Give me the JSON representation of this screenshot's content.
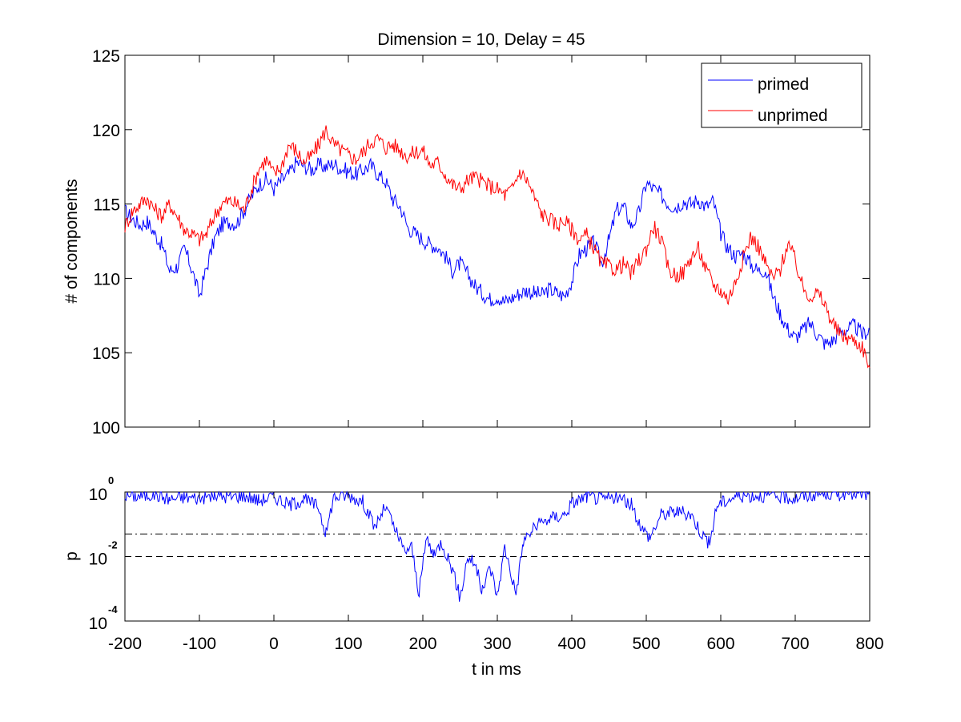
{
  "chart_data": [
    {
      "type": "line",
      "title": "Dimension  = 10, Delay = 45",
      "xlabel": "",
      "ylabel": "# of components",
      "xlim": [
        -200,
        800
      ],
      "ylim": [
        100,
        125
      ],
      "yticks": [
        "100",
        "105",
        "110",
        "115",
        "120",
        "125"
      ],
      "grid": false,
      "legend_position": "top-right",
      "series": [
        {
          "name": "primed",
          "color": "#0000ff",
          "points": [
            [
              -200,
              114.5
            ],
            [
              -190,
              114.0
            ],
            [
              -180,
              113.6
            ],
            [
              -170,
              113.8
            ],
            [
              -160,
              113.0
            ],
            [
              -150,
              112.2
            ],
            [
              -140,
              110.5
            ],
            [
              -130,
              110.8
            ],
            [
              -120,
              112.0
            ],
            [
              -110,
              110.6
            ],
            [
              -100,
              108.8
            ],
            [
              -90,
              110.8
            ],
            [
              -80,
              112.6
            ],
            [
              -70,
              113.6
            ],
            [
              -60,
              113.8
            ],
            [
              -50,
              113.7
            ],
            [
              -40,
              114.6
            ],
            [
              -30,
              115.5
            ],
            [
              -20,
              116.3
            ],
            [
              -10,
              116.7
            ],
            [
              0,
              116.0
            ],
            [
              10,
              116.6
            ],
            [
              20,
              117.0
            ],
            [
              30,
              117.8
            ],
            [
              40,
              117.6
            ],
            [
              50,
              117.3
            ],
            [
              60,
              117.6
            ],
            [
              70,
              117.5
            ],
            [
              80,
              117.7
            ],
            [
              90,
              117.4
            ],
            [
              100,
              117.2
            ],
            [
              110,
              117.0
            ],
            [
              120,
              117.3
            ],
            [
              130,
              117.6
            ],
            [
              140,
              117.0
            ],
            [
              150,
              116.5
            ],
            [
              160,
              115.3
            ],
            [
              170,
              114.8
            ],
            [
              180,
              113.4
            ],
            [
              190,
              113.0
            ],
            [
              200,
              112.6
            ],
            [
              210,
              112.3
            ],
            [
              220,
              112.1
            ],
            [
              230,
              111.5
            ],
            [
              240,
              110.5
            ],
            [
              250,
              111.0
            ],
            [
              260,
              110.3
            ],
            [
              270,
              109.5
            ],
            [
              280,
              109.0
            ],
            [
              290,
              108.6
            ],
            [
              300,
              108.8
            ],
            [
              310,
              108.4
            ],
            [
              320,
              108.7
            ],
            [
              330,
              109.0
            ],
            [
              340,
              109.2
            ],
            [
              350,
              109.0
            ],
            [
              360,
              108.9
            ],
            [
              370,
              109.3
            ],
            [
              380,
              109.0
            ],
            [
              390,
              108.8
            ],
            [
              400,
              109.8
            ],
            [
              410,
              111.6
            ],
            [
              420,
              112.0
            ],
            [
              430,
              112.4
            ],
            [
              440,
              111.0
            ],
            [
              450,
              112.6
            ],
            [
              460,
              114.6
            ],
            [
              470,
              114.8
            ],
            [
              480,
              113.5
            ],
            [
              490,
              114.4
            ],
            [
              500,
              116.4
            ],
            [
              510,
              116.0
            ],
            [
              520,
              115.6
            ],
            [
              530,
              115.0
            ],
            [
              540,
              114.8
            ],
            [
              550,
              115.2
            ],
            [
              560,
              115.0
            ],
            [
              570,
              115.3
            ],
            [
              580,
              114.8
            ],
            [
              590,
              115.2
            ],
            [
              600,
              113.0
            ],
            [
              610,
              112.0
            ],
            [
              620,
              111.5
            ],
            [
              630,
              111.7
            ],
            [
              640,
              111.0
            ],
            [
              650,
              110.5
            ],
            [
              660,
              110.6
            ],
            [
              670,
              108.8
            ],
            [
              680,
              107.6
            ],
            [
              690,
              106.6
            ],
            [
              700,
              106.0
            ],
            [
              710,
              106.5
            ],
            [
              720,
              107.0
            ],
            [
              730,
              106.2
            ],
            [
              740,
              105.6
            ],
            [
              750,
              105.8
            ],
            [
              760,
              106.4
            ],
            [
              770,
              106.6
            ],
            [
              780,
              106.8
            ],
            [
              790,
              106.2
            ],
            [
              800,
              106.6
            ]
          ]
        },
        {
          "name": "unprimed",
          "color": "#ff0000",
          "points": [
            [
              -200,
              113.5
            ],
            [
              -190,
              114.5
            ],
            [
              -180,
              115.0
            ],
            [
              -170,
              115.4
            ],
            [
              -160,
              114.6
            ],
            [
              -150,
              114.2
            ],
            [
              -140,
              115.0
            ],
            [
              -130,
              114.2
            ],
            [
              -120,
              113.3
            ],
            [
              -110,
              113.0
            ],
            [
              -100,
              112.6
            ],
            [
              -90,
              113.0
            ],
            [
              -80,
              114.2
            ],
            [
              -70,
              115.0
            ],
            [
              -60,
              115.2
            ],
            [
              -50,
              115.0
            ],
            [
              -40,
              114.6
            ],
            [
              -30,
              116.0
            ],
            [
              -20,
              117.4
            ],
            [
              -10,
              118.0
            ],
            [
              0,
              117.0
            ],
            [
              10,
              117.5
            ],
            [
              20,
              119.0
            ],
            [
              30,
              118.6
            ],
            [
              40,
              117.8
            ],
            [
              50,
              118.2
            ],
            [
              60,
              119.0
            ],
            [
              70,
              120.0
            ],
            [
              80,
              119.0
            ],
            [
              90,
              118.6
            ],
            [
              100,
              118.3
            ],
            [
              110,
              118.0
            ],
            [
              120,
              118.5
            ],
            [
              130,
              119.2
            ],
            [
              140,
              119.4
            ],
            [
              150,
              118.8
            ],
            [
              160,
              119.0
            ],
            [
              170,
              118.6
            ],
            [
              180,
              118.2
            ],
            [
              190,
              118.5
            ],
            [
              200,
              118.6
            ],
            [
              210,
              117.6
            ],
            [
              220,
              117.8
            ],
            [
              230,
              117.0
            ],
            [
              240,
              116.3
            ],
            [
              250,
              116.0
            ],
            [
              260,
              116.6
            ],
            [
              270,
              116.8
            ],
            [
              280,
              116.5
            ],
            [
              290,
              116.2
            ],
            [
              300,
              116.0
            ],
            [
              310,
              115.6
            ],
            [
              320,
              116.0
            ],
            [
              330,
              117.2
            ],
            [
              340,
              116.6
            ],
            [
              350,
              115.4
            ],
            [
              360,
              114.3
            ],
            [
              370,
              114.0
            ],
            [
              380,
              113.6
            ],
            [
              390,
              113.9
            ],
            [
              400,
              113.3
            ],
            [
              410,
              112.6
            ],
            [
              420,
              112.9
            ],
            [
              430,
              112.0
            ],
            [
              440,
              111.0
            ],
            [
              450,
              110.8
            ],
            [
              460,
              110.6
            ],
            [
              470,
              111.0
            ],
            [
              480,
              110.3
            ],
            [
              490,
              111.2
            ],
            [
              500,
              112.0
            ],
            [
              510,
              113.5
            ],
            [
              520,
              112.6
            ],
            [
              530,
              110.6
            ],
            [
              540,
              110.2
            ],
            [
              550,
              110.4
            ],
            [
              560,
              111.4
            ],
            [
              570,
              112.0
            ],
            [
              580,
              110.6
            ],
            [
              590,
              109.6
            ],
            [
              600,
              109.2
            ],
            [
              610,
              108.6
            ],
            [
              620,
              109.8
            ],
            [
              630,
              111.4
            ],
            [
              640,
              112.8
            ],
            [
              650,
              112.2
            ],
            [
              660,
              111.0
            ],
            [
              670,
              110.0
            ],
            [
              680,
              110.6
            ],
            [
              690,
              112.4
            ],
            [
              700,
              111.2
            ],
            [
              710,
              109.4
            ],
            [
              720,
              108.8
            ],
            [
              730,
              109.0
            ],
            [
              740,
              108.2
            ],
            [
              750,
              107.0
            ],
            [
              760,
              106.2
            ],
            [
              770,
              106.0
            ],
            [
              780,
              105.8
            ],
            [
              790,
              105.4
            ],
            [
              800,
              104.0
            ]
          ]
        }
      ],
      "legend": [
        "primed",
        "unprimed"
      ]
    },
    {
      "type": "line",
      "title": "",
      "xlabel": "t in ms",
      "ylabel": "p",
      "xlim": [
        -200,
        800
      ],
      "ylim": [
        0.0001,
        1
      ],
      "yscale": "log",
      "yticks": [
        {
          "base": "10",
          "exp": "0"
        },
        {
          "base": "10",
          "exp": "-2"
        },
        {
          "base": "10",
          "exp": "-4"
        }
      ],
      "xticks": [
        "-200",
        "-100",
        "0",
        "100",
        "200",
        "300",
        "400",
        "500",
        "600",
        "700",
        "800"
      ],
      "reference_lines": [
        {
          "y": 0.05,
          "style": "dash-dot"
        },
        {
          "y": 0.01,
          "style": "dashed"
        }
      ],
      "series": [
        {
          "color": "#0000ff",
          "points": [
            [
              -200,
              0.8
            ],
            [
              -180,
              0.75
            ],
            [
              -160,
              0.85
            ],
            [
              -140,
              0.6
            ],
            [
              -120,
              0.7
            ],
            [
              -100,
              0.65
            ],
            [
              -80,
              0.78
            ],
            [
              -60,
              0.7
            ],
            [
              -40,
              0.8
            ],
            [
              -20,
              0.55
            ],
            [
              0,
              0.75
            ],
            [
              20,
              0.4
            ],
            [
              40,
              0.6
            ],
            [
              60,
              0.35
            ],
            [
              70,
              0.05
            ],
            [
              80,
              0.7
            ],
            [
              100,
              0.8
            ],
            [
              120,
              0.5
            ],
            [
              135,
              0.08
            ],
            [
              150,
              0.35
            ],
            [
              165,
              0.05
            ],
            [
              175,
              0.015
            ],
            [
              185,
              0.02
            ],
            [
              195,
              0.0007
            ],
            [
              205,
              0.04
            ],
            [
              215,
              0.01
            ],
            [
              225,
              0.03
            ],
            [
              240,
              0.004
            ],
            [
              250,
              0.0005
            ],
            [
              260,
              0.01
            ],
            [
              270,
              0.006
            ],
            [
              280,
              0.0008
            ],
            [
              290,
              0.005
            ],
            [
              300,
              0.0006
            ],
            [
              310,
              0.02
            ],
            [
              325,
              0.0007
            ],
            [
              335,
              0.03
            ],
            [
              350,
              0.08
            ],
            [
              370,
              0.15
            ],
            [
              390,
              0.2
            ],
            [
              400,
              0.45
            ],
            [
              420,
              0.75
            ],
            [
              440,
              0.6
            ],
            [
              460,
              0.7
            ],
            [
              480,
              0.4
            ],
            [
              495,
              0.07
            ],
            [
              505,
              0.04
            ],
            [
              520,
              0.2
            ],
            [
              540,
              0.25
            ],
            [
              560,
              0.2
            ],
            [
              575,
              0.05
            ],
            [
              585,
              0.025
            ],
            [
              595,
              0.4
            ],
            [
              620,
              0.75
            ],
            [
              650,
              0.8
            ],
            [
              680,
              0.7
            ],
            [
              700,
              0.65
            ],
            [
              720,
              0.8
            ],
            [
              740,
              0.9
            ],
            [
              760,
              0.85
            ],
            [
              780,
              0.95
            ],
            [
              800,
              0.75
            ]
          ]
        }
      ]
    }
  ]
}
